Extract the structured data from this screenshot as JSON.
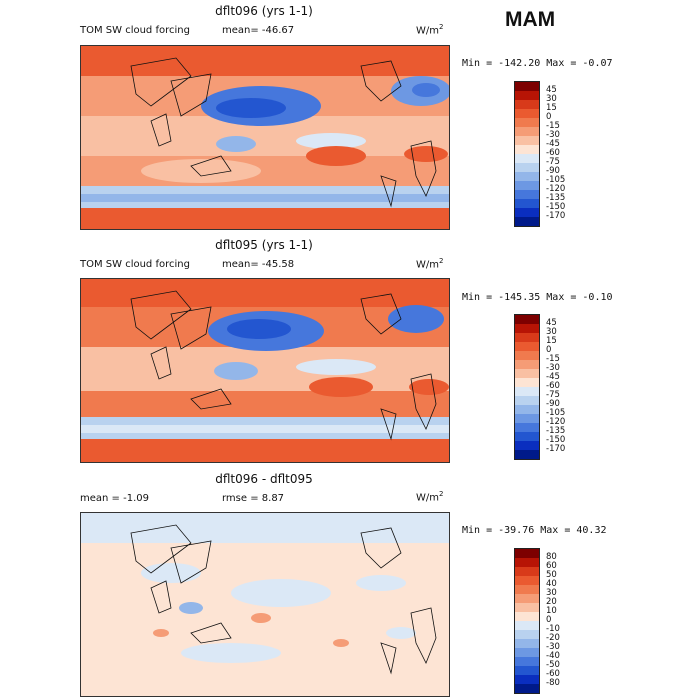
{
  "season": "MAM",
  "panels": [
    {
      "title": "dflt096 (yrs 1-1)",
      "left_label": "TOM SW cloud forcing",
      "stat_label": "mean= -46.67",
      "units": "W/m",
      "units_sup": "2",
      "minmax": "Min = -142.20 Max =  -0.07",
      "colorbar": {
        "levels": [
          "45",
          "30",
          "15",
          "0",
          "-15",
          "-30",
          "-45",
          "-60",
          "-75",
          "-90",
          "-105",
          "-120",
          "-135",
          "-150",
          "-170"
        ],
        "colors": [
          "#7d0000",
          "#b71405",
          "#d83a1a",
          "#ea5a30",
          "#f07a4e",
          "#f59c76",
          "#f9c0a3",
          "#fde4d4",
          "#dbe8f6",
          "#b9d2ef",
          "#93b6e9",
          "#6d98e3",
          "#4677dc",
          "#2356d0",
          "#0a2ebf",
          "#001a8a"
        ]
      }
    },
    {
      "title": "dflt095 (yrs 1-1)",
      "left_label": "TOM SW cloud forcing",
      "stat_label": "mean= -45.58",
      "units": "W/m",
      "units_sup": "2",
      "minmax": "Min = -145.35 Max =  -0.10",
      "colorbar": {
        "levels": [
          "45",
          "30",
          "15",
          "0",
          "-15",
          "-30",
          "-45",
          "-60",
          "-75",
          "-90",
          "-105",
          "-120",
          "-135",
          "-150",
          "-170"
        ],
        "colors": [
          "#7d0000",
          "#b71405",
          "#d83a1a",
          "#ea5a30",
          "#f07a4e",
          "#f59c76",
          "#f9c0a3",
          "#fde4d4",
          "#dbe8f6",
          "#b9d2ef",
          "#93b6e9",
          "#6d98e3",
          "#4677dc",
          "#2356d0",
          "#0a2ebf",
          "#001a8a"
        ]
      }
    },
    {
      "title": "dflt096 - dflt095",
      "left_label": "mean =   -1.09",
      "stat_label": "rmse =    8.87",
      "units": "W/m",
      "units_sup": "2",
      "minmax": "Min = -39.76 Max =  40.32",
      "colorbar": {
        "levels": [
          "80",
          "60",
          "50",
          "40",
          "30",
          "20",
          "10",
          "0",
          "-10",
          "-20",
          "-30",
          "-40",
          "-50",
          "-60",
          "-80"
        ],
        "colors": [
          "#7d0000",
          "#b71405",
          "#d83a1a",
          "#ea5a30",
          "#f07a4e",
          "#f59c76",
          "#f9c0a3",
          "#fde4d4",
          "#dbe8f6",
          "#b9d2ef",
          "#93b6e9",
          "#6d98e3",
          "#4677dc",
          "#2356d0",
          "#0a2ebf",
          "#001a8a"
        ]
      }
    }
  ]
}
